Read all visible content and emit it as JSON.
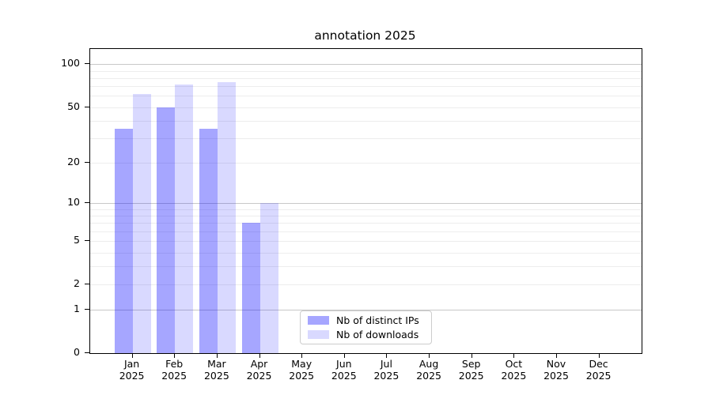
{
  "figure": {
    "background": "#ffffff"
  },
  "chart_data": {
    "type": "bar",
    "title": "annotation 2025",
    "categories": [
      "Jan 2025",
      "Feb 2025",
      "Mar 2025",
      "Apr 2025",
      "May 2025",
      "Jun 2025",
      "Jul 2025",
      "Aug 2025",
      "Sep 2025",
      "Oct 2025",
      "Nov 2025",
      "Dec 2025"
    ],
    "series": [
      {
        "name": "Nb of distinct IPs",
        "color": "#0000ff59",
        "solid_color": "#a5a5ff",
        "values": [
          35,
          50,
          35,
          7,
          0,
          0,
          0,
          0,
          0,
          0,
          0,
          0
        ]
      },
      {
        "name": "Nb of downloads",
        "color": "#0000ff26",
        "solid_color": "#d9d9ff",
        "values": [
          62,
          72,
          75,
          10,
          0,
          0,
          0,
          0,
          0,
          0,
          0,
          0
        ]
      }
    ],
    "xlabel": "",
    "ylabel": "",
    "yscale": "log1p",
    "ylim": [
      0,
      100
    ],
    "yticks": [
      0,
      1,
      2,
      5,
      10,
      20,
      50,
      100
    ],
    "gridlines": {
      "major": [
        1,
        10,
        100
      ],
      "minor": [
        2,
        3,
        4,
        5,
        6,
        7,
        8,
        9,
        20,
        30,
        40,
        50,
        60,
        70,
        80,
        90
      ],
      "major_color": "#c8c8c8",
      "minor_color": "#ededed"
    },
    "legend": {
      "position": "lower-center-inside",
      "border_color": "#cccccc"
    },
    "axis_color": "#000000",
    "grid": true
  }
}
